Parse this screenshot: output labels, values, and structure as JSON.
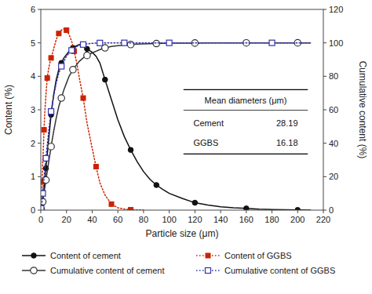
{
  "chart_data": {
    "type": "line",
    "xlabel": "Particle size (μm)",
    "ylabel": "Content (%)",
    "y2label": "Cumulative content (%)",
    "xlim": [
      0,
      220
    ],
    "xticks": [
      0,
      20,
      40,
      60,
      80,
      100,
      120,
      140,
      160,
      180,
      200,
      220
    ],
    "ylim": [
      0,
      6
    ],
    "yticks": [
      0,
      1,
      2,
      3,
      4,
      5,
      6
    ],
    "y2lim": [
      0,
      120
    ],
    "y2ticks": [
      0,
      20,
      40,
      60,
      80,
      100,
      120
    ],
    "legend": "bottom",
    "series": [
      {
        "name": "Content of cement",
        "color": "#111111",
        "marker": "circle",
        "line_style": "solid",
        "x": [
          0.3,
          0.5,
          0.8,
          1,
          1.5,
          2,
          2.5,
          3,
          4,
          5,
          6,
          7,
          8,
          10,
          12,
          14,
          16,
          18,
          20,
          22,
          25,
          28,
          30,
          33,
          36,
          40,
          43,
          46,
          50,
          55,
          60,
          65,
          70,
          75,
          80,
          85,
          90,
          95,
          100,
          110,
          120,
          130,
          140,
          150,
          160,
          170,
          180,
          190,
          200,
          210
        ],
        "values": [
          0.02,
          0.05,
          0.1,
          0.15,
          0.28,
          0.45,
          0.65,
          0.85,
          1.25,
          1.65,
          2.05,
          2.45,
          2.85,
          3.45,
          3.9,
          4.2,
          4.4,
          4.55,
          4.65,
          4.75,
          4.85,
          4.92,
          4.95,
          4.9,
          4.82,
          4.72,
          4.6,
          4.4,
          3.9,
          3.3,
          2.7,
          2.2,
          1.8,
          1.45,
          1.15,
          0.92,
          0.75,
          0.62,
          0.5,
          0.35,
          0.22,
          0.15,
          0.1,
          0.07,
          0.05,
          0.03,
          0.02,
          0.01,
          0.005,
          0.002
        ]
      },
      {
        "name": "Content of GGBS",
        "color": "#cc2200",
        "marker": "square",
        "line_style": "dotted",
        "x": [
          0.3,
          0.5,
          0.8,
          1,
          1.5,
          2,
          2.5,
          3,
          4,
          5,
          6,
          7,
          8,
          10,
          12,
          14,
          16,
          18,
          20,
          22,
          24,
          26,
          28,
          30,
          33,
          36,
          40,
          43,
          46,
          50,
          55,
          60,
          65,
          70,
          75,
          80
        ],
        "values": [
          0.1,
          0.25,
          0.55,
          0.85,
          1.4,
          1.9,
          2.4,
          2.85,
          3.45,
          3.95,
          4.2,
          4.4,
          4.55,
          4.82,
          5.1,
          5.28,
          5.38,
          5.42,
          5.38,
          5.25,
          5.05,
          4.75,
          4.4,
          3.95,
          3.35,
          2.6,
          1.85,
          1.3,
          0.82,
          0.45,
          0.18,
          0.07,
          0.03,
          0.01,
          0.005,
          0.002
        ]
      },
      {
        "name": "Cumulative content of cement",
        "color": "#333333",
        "marker": "open-circle",
        "line_style": "solid",
        "axis": "y2",
        "x": [
          0.3,
          0.5,
          0.8,
          1,
          1.5,
          2,
          2.5,
          3,
          4,
          5,
          6,
          7,
          8,
          10,
          12,
          14,
          16,
          18,
          20,
          22,
          25,
          28,
          30,
          33,
          36,
          40,
          43,
          46,
          50,
          55,
          60,
          65,
          70,
          75,
          80,
          85,
          90,
          95,
          100,
          110,
          120,
          130,
          140,
          150,
          160,
          170,
          180,
          190,
          200,
          210
        ],
        "values": [
          0.5,
          1,
          2,
          3,
          5,
          7.5,
          10,
          13,
          18,
          23,
          28,
          33,
          38,
          47,
          55,
          62,
          67,
          72,
          76,
          80,
          84,
          87,
          89,
          91,
          92.5,
          94,
          95,
          96,
          97,
          97.8,
          98.3,
          98.7,
          99.0,
          99.2,
          99.4,
          99.5,
          99.6,
          99.7,
          99.8,
          99.85,
          99.9,
          99.92,
          99.95,
          99.97,
          99.98,
          99.99,
          100,
          100,
          100,
          100
        ]
      },
      {
        "name": "Cumulative content of GGBS",
        "color": "#3333aa",
        "marker": "open-square",
        "line_style": "dotted",
        "axis": "y2",
        "x": [
          0.3,
          0.5,
          0.8,
          1,
          1.5,
          2,
          2.5,
          3,
          4,
          5,
          6,
          7,
          8,
          10,
          12,
          14,
          16,
          18,
          20,
          22,
          24,
          26,
          28,
          30,
          33,
          36,
          40,
          43,
          46,
          50,
          55,
          60,
          65,
          70,
          80,
          90,
          100,
          120,
          140,
          160,
          180,
          200,
          210
        ],
        "values": [
          1,
          2,
          4,
          6,
          10,
          14,
          19,
          24,
          31,
          39,
          46,
          53,
          59,
          68,
          76,
          82,
          86,
          89,
          92,
          94,
          95.5,
          96.8,
          97.8,
          98.5,
          99.0,
          99.4,
          99.7,
          99.85,
          99.92,
          99.96,
          99.98,
          99.99,
          100,
          100,
          100,
          100,
          100,
          100,
          100,
          100,
          100,
          100,
          100
        ]
      }
    ],
    "table": {
      "title": "Mean diameters (μm)",
      "rows": [
        {
          "label": "Cement",
          "value": 28.19
        },
        {
          "label": "GGBS",
          "value": 16.18
        }
      ]
    }
  }
}
